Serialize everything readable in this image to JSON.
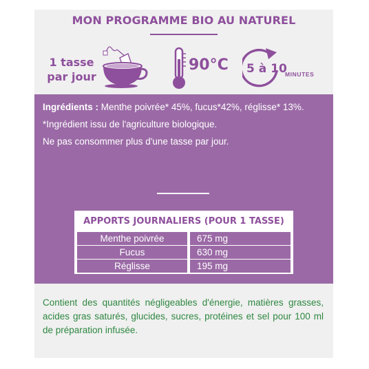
{
  "header": {
    "title": "MON PROGRAMME BIO AU NATUREL"
  },
  "instructions": {
    "dosage_line1": "1 tasse",
    "dosage_line2": "par jour",
    "temperature": "90°C",
    "duration": "5 à 10",
    "duration_unit": "MINUTES"
  },
  "ingredients": {
    "label": "Ingrédients :",
    "list": " Menthe poivrée* 45%, fucus*42%, réglisse* 13%.",
    "organic_note": "*Ingrédient issu de l'agriculture biologique.",
    "warning": "Ne pas consommer plus d'une tasse par jour."
  },
  "daily_intake": {
    "heading": "APPORTS JOURNALIERS (POUR 1 TASSE)",
    "rows": [
      {
        "name": "Menthe poivrée",
        "amount": "675 mg"
      },
      {
        "name": "Fucus",
        "amount": "630 mg"
      },
      {
        "name": "Réglisse",
        "amount": "195 mg"
      }
    ]
  },
  "nutrition_note": "Contient des quantités négligeables d'énergie, matières grasses, acides gras saturés, glucides, sucres, protéines et sel pour 100 ml de préparation infusée.",
  "colors": {
    "brand_purple": "#8e4f9c",
    "band_purple": "#9b6aa6",
    "note_green": "#2e8741"
  }
}
